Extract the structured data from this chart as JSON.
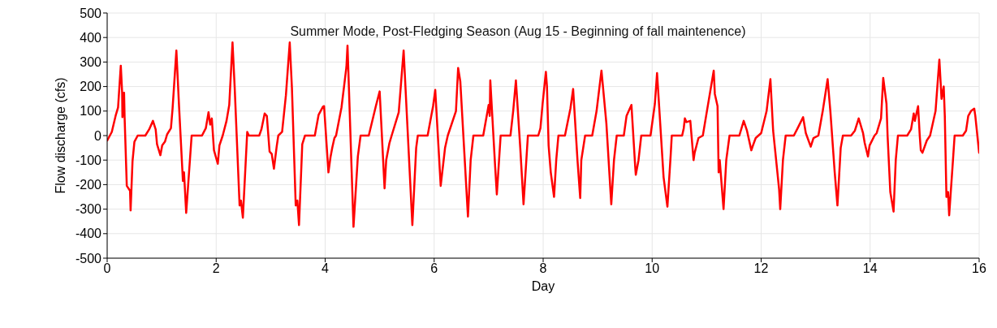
{
  "chart_data": {
    "type": "line",
    "title": "Summer Mode, Post-Fledging Season (Aug 15 - Beginning of fall maintenence)",
    "xlabel": "Day",
    "ylabel": "Flow discharge (cfs)",
    "xlim": [
      0,
      16
    ],
    "xticks": [
      0,
      2,
      4,
      6,
      8,
      10,
      12,
      14,
      16
    ],
    "ylim": [
      -500,
      500
    ],
    "yticks": [
      -500,
      -400,
      -300,
      -200,
      -100,
      0,
      100,
      200,
      300,
      400,
      500
    ],
    "grid": true,
    "marker": "none",
    "line_style": "solid",
    "series": [
      {
        "color": "#ff0000",
        "x": [
          0,
          0.085,
          0.16,
          0.2,
          0.25,
          0.275,
          0.28,
          0.31,
          0.32,
          0.36,
          0.42,
          0.43,
          0.465,
          0.5,
          0.56,
          0.7,
          0.77,
          0.84,
          0.89,
          0.915,
          0.976,
          1.01,
          1.06,
          1.1,
          1.17,
          1.2,
          1.27,
          1.32,
          1.39,
          1.41,
          1.45,
          1.55,
          1.74,
          1.81,
          1.86,
          1.89,
          1.92,
          1.96,
          2.03,
          2.06,
          2.12,
          2.19,
          2.24,
          2.3,
          2.34,
          2.43,
          2.455,
          2.49,
          2.57,
          2.6,
          2.79,
          2.83,
          2.89,
          2.93,
          2.98,
          3.02,
          3.06,
          3.11,
          3.14,
          3.21,
          3.28,
          3.35,
          3.39,
          3.46,
          3.49,
          3.52,
          3.58,
          3.63,
          3.81,
          3.88,
          3.96,
          3.98,
          4.06,
          4.1,
          4.13,
          4.17,
          4.2,
          4.3,
          4.39,
          4.41,
          4.52,
          4.6,
          4.65,
          4.8,
          4.93,
          5.0,
          5.09,
          5.12,
          5.18,
          5.22,
          5.35,
          5.44,
          5.6,
          5.67,
          5.7,
          5.88,
          5.98,
          6.02,
          6.12,
          6.2,
          6.25,
          6.4,
          6.44,
          6.48,
          6.62,
          6.67,
          6.72,
          6.9,
          7.0,
          7.02,
          7.03,
          7.12,
          7.15,
          7.22,
          7.4,
          7.45,
          7.5,
          7.58,
          7.64,
          7.72,
          7.91,
          7.95,
          7.99,
          8.05,
          8.07,
          8.1,
          8.14,
          8.2,
          8.24,
          8.28,
          8.4,
          8.5,
          8.55,
          8.63,
          8.68,
          8.7,
          8.77,
          8.9,
          8.98,
          9.07,
          9.16,
          9.25,
          9.3,
          9.35,
          9.48,
          9.53,
          9.62,
          9.69,
          9.7,
          9.75,
          9.8,
          9.97,
          10.05,
          10.09,
          10.21,
          10.28,
          10.34,
          10.36,
          10.55,
          10.58,
          10.6,
          10.63,
          10.7,
          10.76,
          10.78,
          10.85,
          10.93,
          10.99,
          11.13,
          11.15,
          11.2,
          11.22,
          11.24,
          11.31,
          11.36,
          11.42,
          11.6,
          11.68,
          11.74,
          11.82,
          11.85,
          11.9,
          11.95,
          12.0,
          12.1,
          12.17,
          12.22,
          12.33,
          12.35,
          12.4,
          12.45,
          12.6,
          12.67,
          12.77,
          12.82,
          12.91,
          12.96,
          13.05,
          13.13,
          13.22,
          13.27,
          13.35,
          13.4,
          13.46,
          13.5,
          13.65,
          13.72,
          13.79,
          13.87,
          13.9,
          13.96,
          13.99,
          14.08,
          14.12,
          14.2,
          14.24,
          14.3,
          14.32,
          14.37,
          14.43,
          14.47,
          14.51,
          14.68,
          14.75,
          14.8,
          14.82,
          14.88,
          14.91,
          14.93,
          14.96,
          15.04,
          15.1,
          15.2,
          15.27,
          15.31,
          15.35,
          15.37,
          15.4,
          15.43,
          15.45,
          15.52,
          15.55,
          15.7,
          15.76,
          15.8,
          15.85,
          15.91,
          15.93,
          16.0
        ],
        "values": [
          -20,
          15,
          85,
          115,
          285,
          175,
          75,
          175,
          75,
          -205,
          -225,
          -305,
          -105,
          -25,
          0,
          0,
          25,
          60,
          25,
          -35,
          -80,
          -40,
          -25,
          5,
          30,
          110,
          347,
          115,
          -185,
          -150,
          -315,
          0,
          0,
          30,
          95,
          45,
          70,
          -60,
          -115,
          -40,
          0,
          60,
          125,
          380,
          195,
          -285,
          -265,
          -335,
          15,
          0,
          0,
          25,
          90,
          80,
          -65,
          -75,
          -135,
          -45,
          0,
          15,
          165,
          380,
          195,
          -285,
          -265,
          -365,
          -35,
          0,
          0,
          85,
          118,
          120,
          -150,
          -85,
          -50,
          -10,
          0,
          115,
          280,
          367,
          -372,
          -85,
          0,
          0,
          120,
          180,
          -215,
          -100,
          -30,
          0,
          95,
          347,
          -365,
          -50,
          0,
          0,
          120,
          186,
          -205,
          -50,
          0,
          100,
          276,
          220,
          -330,
          -100,
          0,
          0,
          125,
          80,
          225,
          -130,
          -240,
          0,
          0,
          100,
          225,
          -50,
          -280,
          0,
          0,
          30,
          130,
          260,
          200,
          -40,
          -150,
          -250,
          -100,
          0,
          0,
          110,
          190,
          -100,
          -255,
          -100,
          0,
          0,
          100,
          265,
          50,
          -280,
          -100,
          0,
          0,
          80,
          125,
          -130,
          -160,
          -100,
          0,
          0,
          130,
          255,
          -170,
          -290,
          -80,
          0,
          0,
          30,
          70,
          55,
          60,
          -100,
          -70,
          -10,
          0,
          80,
          265,
          170,
          120,
          -150,
          -100,
          -300,
          -100,
          0,
          0,
          60,
          20,
          -60,
          -40,
          -10,
          0,
          10,
          100,
          230,
          20,
          -220,
          -300,
          -100,
          0,
          0,
          30,
          75,
          10,
          -45,
          -10,
          0,
          100,
          230,
          100,
          -150,
          -285,
          -50,
          0,
          0,
          20,
          70,
          10,
          -30,
          -85,
          -40,
          0,
          10,
          70,
          235,
          130,
          0,
          -230,
          -310,
          -100,
          0,
          0,
          25,
          90,
          60,
          120,
          0,
          -60,
          -70,
          -20,
          0,
          100,
          310,
          150,
          200,
          80,
          -250,
          -230,
          -325,
          -100,
          0,
          0,
          20,
          80,
          100,
          110,
          80,
          -70
        ]
      }
    ]
  }
}
